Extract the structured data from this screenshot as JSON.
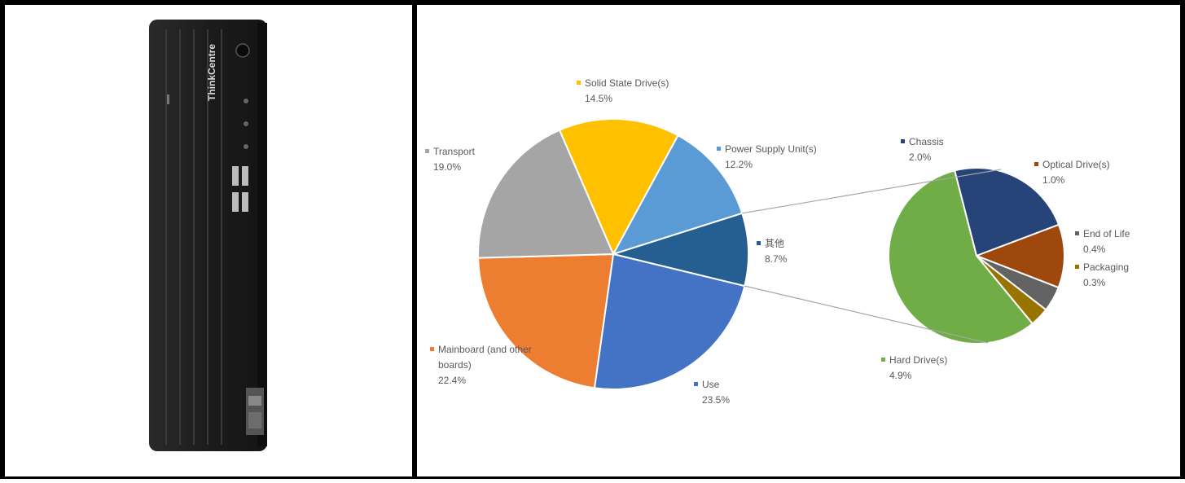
{
  "product_image": {
    "brand_text": "ThinkCentre"
  },
  "chart_data": {
    "type": "pie",
    "title": "",
    "main_pie": [
      {
        "label": "Solid State Drive(s)",
        "value": 14.5,
        "value_label": "14.5%",
        "color": "#FFC000"
      },
      {
        "label": "Power Supply Unit(s)",
        "value": 12.2,
        "value_label": "12.2%",
        "color": "#5B9BD5"
      },
      {
        "label": "其他",
        "value": 8.7,
        "value_label": "8.7%",
        "color": "#255E91"
      },
      {
        "label": "Use",
        "value": 23.5,
        "value_label": "23.5%",
        "color": "#4472C4"
      },
      {
        "label": "Mainboard (and other boards)",
        "value": 22.4,
        "value_label": "22.4%",
        "color": "#ED7D31"
      },
      {
        "label": "Transport",
        "value": 19.0,
        "value_label": "19.0%",
        "color": "#A5A5A5"
      }
    ],
    "secondary_pie": [
      {
        "label": "Chassis",
        "value": 2.0,
        "value_label": "2.0%",
        "color": "#264478"
      },
      {
        "label": "Optical Drive(s)",
        "value": 1.0,
        "value_label": "1.0%",
        "color": "#9E480E"
      },
      {
        "label": "End of Life",
        "value": 0.4,
        "value_label": "0.4%",
        "color": "#636363"
      },
      {
        "label": "Packaging",
        "value": 0.3,
        "value_label": "0.3%",
        "color": "#997300"
      },
      {
        "label": "Hard Drive(s)",
        "value": 4.9,
        "value_label": "4.9%",
        "color": "#70AD47"
      }
    ]
  }
}
